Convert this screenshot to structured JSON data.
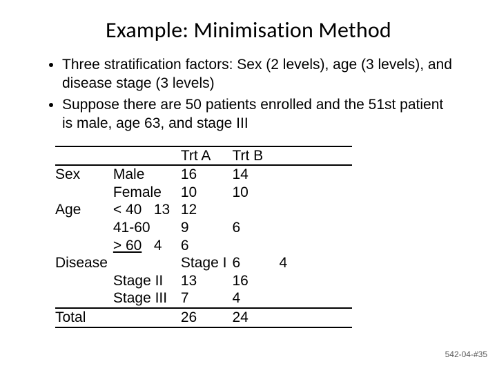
{
  "title": "Example: Minimisation Method",
  "bullets": [
    "Three stratification factors: Sex (2 levels), age (3 levels), and disease stage (3 levels)",
    "Suppose there are 50 patients enrolled and the 51st patient is male, age 63, and stage III"
  ],
  "headers": {
    "trtA": "Trt A",
    "trtB": "Trt B"
  },
  "rows": {
    "sex": {
      "label": "Sex",
      "male": "Male",
      "female": "Female",
      "male_a": "16",
      "male_b": "14",
      "female_a": "10",
      "female_b": "10"
    },
    "age": {
      "label": "Age",
      "lt40": "< 40",
      "lt40_n": "13",
      "r4160": "41-60",
      "ge60": "> 60",
      "ge60_n": "4",
      "lt40_b": "12",
      "r4160_a": "9",
      "r4160_b": "6",
      "ge60_b": "6"
    },
    "disease": {
      "label": "Disease",
      "s1": "Stage I",
      "s2": "Stage II",
      "s3": "Stage III",
      "s1_a": "6",
      "s1_b": "4",
      "s2_a": "13",
      "s2_b": "16",
      "s3_a": "7",
      "s3_b": "4"
    },
    "total": {
      "label": "Total",
      "a": "26",
      "b": "24"
    }
  },
  "footer": "542-04-#35",
  "style": {
    "title_fontsize": 32,
    "body_fontsize": 21,
    "footer_fontsize": 12,
    "footer_color": "#595959",
    "rule_color": "#000000",
    "background": "#ffffff"
  }
}
